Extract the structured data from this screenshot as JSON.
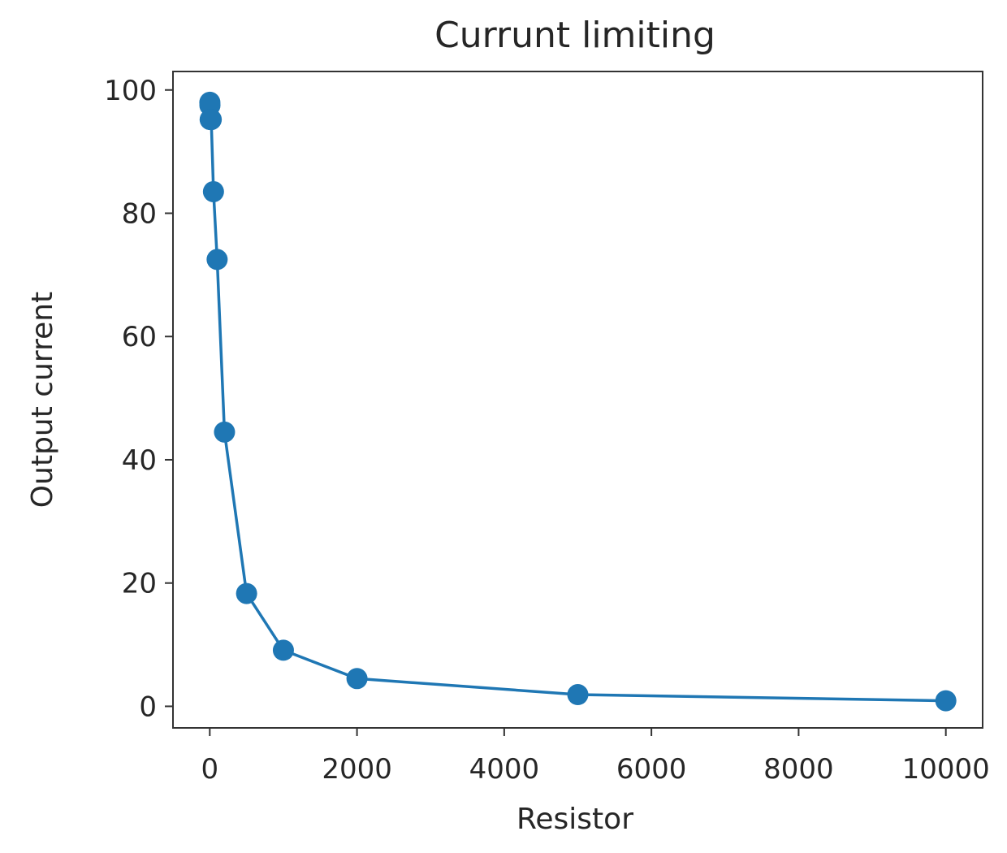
{
  "chart_data": {
    "type": "line",
    "title": "Currunt limiting",
    "xlabel": "Resistor",
    "ylabel": "Output current",
    "xlim": [
      -500,
      10500
    ],
    "ylim": [
      -3.5,
      103
    ],
    "xticks": [
      0,
      2000,
      4000,
      6000,
      8000,
      10000
    ],
    "xtick_labels": [
      "0",
      "2000",
      "4000",
      "6000",
      "8000",
      "10000"
    ],
    "yticks": [
      0,
      20,
      40,
      60,
      80,
      100
    ],
    "ytick_labels": [
      "0",
      "20",
      "40",
      "60",
      "80",
      "100"
    ],
    "grid": false,
    "series": [
      {
        "color": "#1f77b4",
        "marker": "circle",
        "x": [
          1,
          2,
          5,
          20,
          50,
          100,
          200,
          500,
          1000,
          2000,
          5000,
          10000
        ],
        "y": [
          98,
          97.5,
          95.2,
          95.2,
          83.5,
          72.5,
          44.5,
          18.3,
          9.1,
          4.5,
          1.9,
          0.9
        ]
      }
    ]
  }
}
